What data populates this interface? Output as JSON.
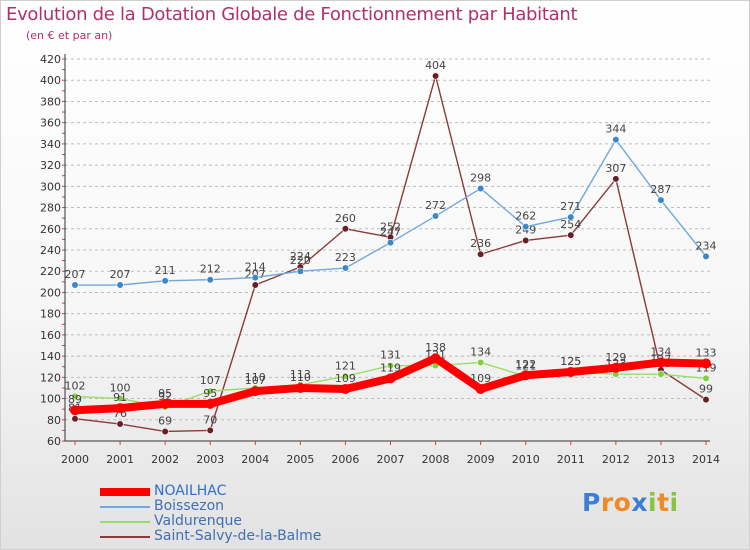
{
  "title": "Evolution de la Dotation Globale de Fonctionnement par Habitant",
  "subtitle": "(en € et par an)",
  "logo": {
    "text": "Proxiti",
    "letters": [
      {
        "ch": "P",
        "color": "#3a7fd5"
      },
      {
        "ch": "r",
        "color": "#f08a24"
      },
      {
        "ch": "o",
        "color": "#f08a24"
      },
      {
        "ch": "x",
        "color": "#3a7fd5"
      },
      {
        "ch": "i",
        "color": "#8ac43f"
      },
      {
        "ch": "t",
        "color": "#f08a24"
      },
      {
        "ch": "i",
        "color": "#8ac43f"
      }
    ]
  },
  "colors": {
    "title": "#b0306e",
    "grid": "#bdbdbd",
    "axis": "#333333"
  },
  "chart_data": {
    "type": "line",
    "title": "Evolution de la Dotation Globale de Fonctionnement par Habitant",
    "subtitle": "(en € et par an)",
    "xlabel": "",
    "ylabel": "",
    "ylim": [
      60,
      420
    ],
    "yticks": [
      60,
      80,
      100,
      120,
      140,
      160,
      180,
      200,
      220,
      240,
      260,
      280,
      300,
      320,
      340,
      360,
      380,
      400,
      420
    ],
    "grid": "horizontal dashed",
    "legend_position": "bottom-left",
    "categories": [
      "2000",
      "2001",
      "2002",
      "2003",
      "2004",
      "2005",
      "2006",
      "2007",
      "2008",
      "2009",
      "2010",
      "2011",
      "2012",
      "2013",
      "2014"
    ],
    "series": [
      {
        "name": "NOAILHAC",
        "color": "#ff0000",
        "marker": "#ff0000",
        "bold": true,
        "values": [
          89,
          91,
          95,
          95,
          107,
          110,
          109,
          119,
          138,
          109,
          122,
          125,
          129,
          134,
          133
        ]
      },
      {
        "name": "Boissezon",
        "color": "#6fa8dc",
        "marker": "#3b87c8",
        "bold": false,
        "values": [
          207,
          207,
          211,
          212,
          214,
          220,
          223,
          247,
          272,
          298,
          262,
          271,
          344,
          287,
          234
        ]
      },
      {
        "name": "Valdurenque",
        "color": "#99dd66",
        "marker": "#7ed03f",
        "bold": false,
        "values": [
          102,
          100,
          92,
          107,
          110,
          113,
          121,
          131,
          131,
          134,
          121,
          125,
          123,
          123,
          119
        ]
      },
      {
        "name": "Saint-Salvy-de-la-Balme",
        "color": "#8b3a3a",
        "marker": "#6b1f25",
        "bold": false,
        "values": [
          81,
          76,
          69,
          70,
          207,
          224,
          260,
          252,
          404,
          236,
          249,
          254,
          307,
          127,
          99
        ]
      }
    ]
  }
}
